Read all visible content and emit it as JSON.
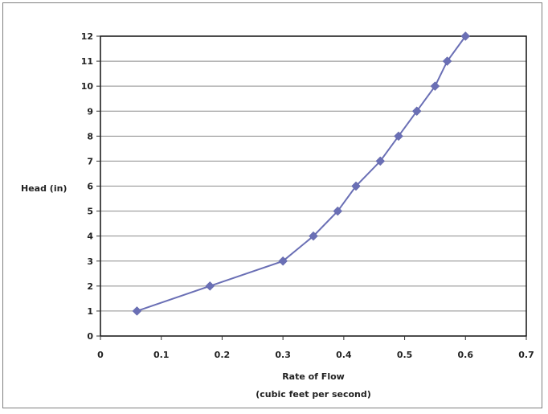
{
  "chart_data": {
    "type": "line",
    "title": "",
    "xlabel": "Rate of Flow",
    "xlabel_line2": "(cubic feet per second)",
    "ylabel": "Head (in)",
    "xlim": [
      0,
      0.7
    ],
    "ylim": [
      0,
      12
    ],
    "x_ticks": [
      "0",
      "0.1",
      "0.2",
      "0.3",
      "0.4",
      "0.5",
      "0.6",
      "0.7"
    ],
    "y_ticks": [
      "0",
      "1",
      "2",
      "3",
      "4",
      "5",
      "6",
      "7",
      "8",
      "9",
      "10",
      "11",
      "12"
    ],
    "grid": "horizontal",
    "legend": "none",
    "series": [
      {
        "x": [
          0.06,
          0.18,
          0.3,
          0.35,
          0.39,
          0.42,
          0.46,
          0.49,
          0.52,
          0.55,
          0.57,
          0.6
        ],
        "y": [
          1,
          2,
          3,
          4,
          5,
          6,
          7,
          8,
          9,
          10,
          11,
          12
        ],
        "color": "#6a6fb5"
      }
    ]
  }
}
